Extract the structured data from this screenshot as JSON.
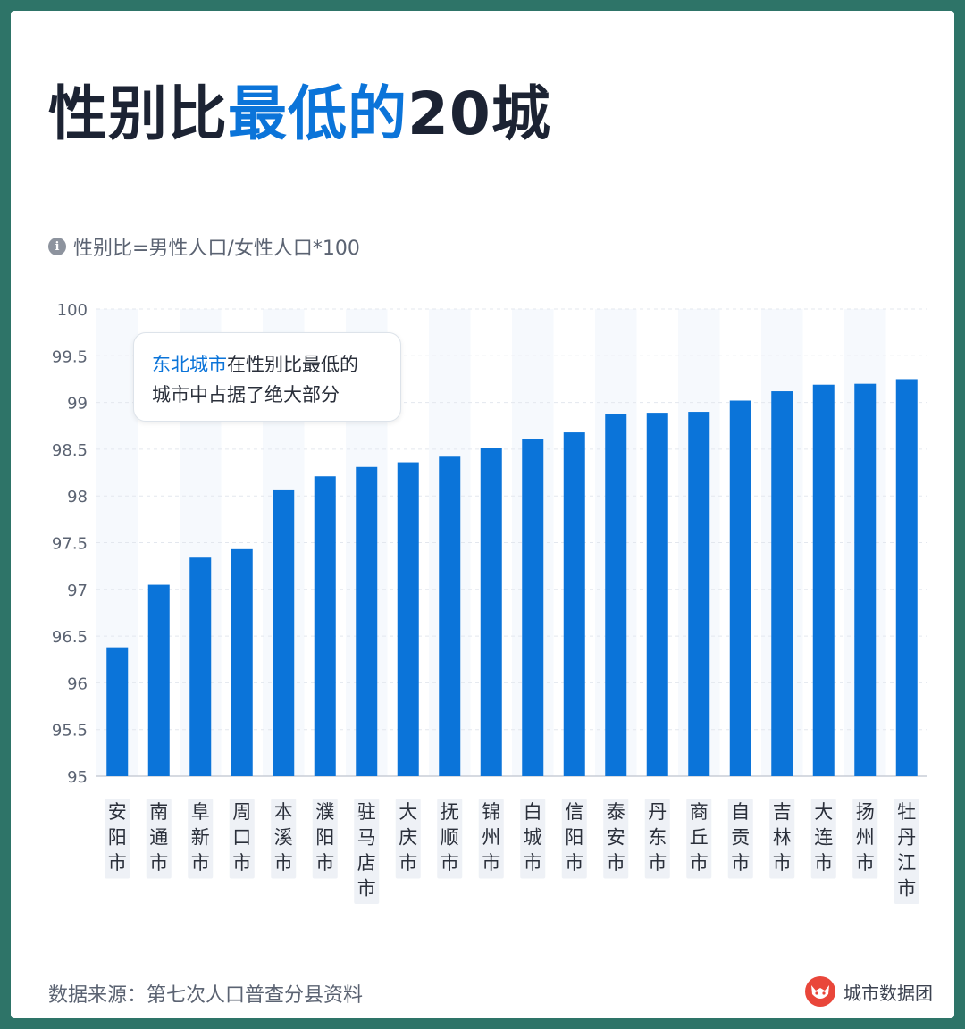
{
  "header": {
    "title_prefix": "性别比",
    "title_highlight": "最低的",
    "title_suffix": "20城"
  },
  "note": {
    "icon": "info-icon",
    "text": "性别比=男性人口/女性人口*100"
  },
  "callout": {
    "highlight": "东北城市",
    "line1_rest": "在性别比最低的",
    "line2": "城市中占据了绝大部分"
  },
  "footer": {
    "source": "数据来源：第七次人口普查分县资料",
    "brand": "城市数据团",
    "brand_icon": "fox-logo-icon"
  },
  "colors": {
    "bar": "#0b74d9",
    "title_highlight": "#0b74d9",
    "background": "#2e7468",
    "label_bg": "#eef1f6"
  },
  "chart_data": {
    "type": "bar",
    "categories": [
      "安阳市",
      "南通市",
      "阜新市",
      "周口市",
      "本溪市",
      "濮阳市",
      "驻马店市",
      "大庆市",
      "抚顺市",
      "锦州市",
      "白城市",
      "信阳市",
      "泰安市",
      "丹东市",
      "商丘市",
      "自贡市",
      "吉林市",
      "大连市",
      "扬州市",
      "牡丹江市"
    ],
    "values": [
      96.38,
      97.05,
      97.34,
      97.43,
      98.06,
      98.21,
      98.31,
      98.36,
      98.42,
      98.51,
      98.61,
      98.68,
      98.88,
      98.89,
      98.9,
      99.02,
      99.12,
      99.19,
      99.2,
      99.25
    ],
    "ylim": [
      95,
      100
    ],
    "yticks": [
      "95",
      "95.5",
      "96",
      "96.5",
      "97",
      "97.5",
      "98",
      "98.5",
      "99",
      "99.5",
      "100"
    ],
    "grid": true
  }
}
